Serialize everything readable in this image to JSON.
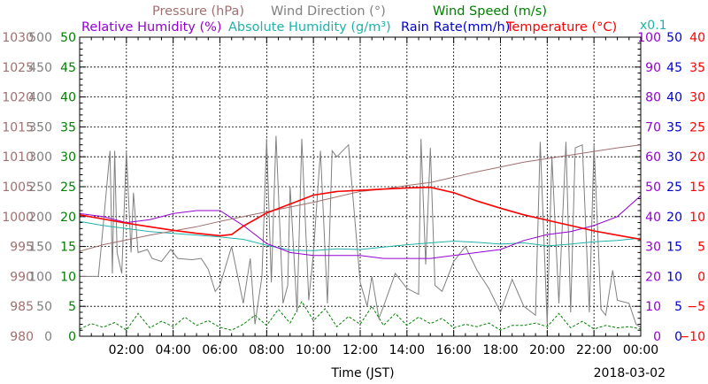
{
  "chart_data": {
    "type": "line",
    "x_axis": {
      "label": "Time (JST)",
      "range": [
        "00:00",
        "24:00"
      ],
      "ticks": [
        "02:00",
        "04:00",
        "06:00",
        "08:00",
        "10:00",
        "12:00",
        "14:00",
        "16:00",
        "18:00",
        "20:00",
        "22:00",
        "00:00"
      ],
      "date": "2018-03-02"
    },
    "left_axes": [
      {
        "name": "Pressure (hPa)",
        "color": "#a07070",
        "range": [
          980,
          1030
        ],
        "ticks": [
          "980",
          "985",
          "990",
          "995",
          "1000",
          "1005",
          "1010",
          "1015",
          "1020",
          "1025",
          "1030"
        ]
      },
      {
        "name": "Wind Direction (°)",
        "color": "#808080",
        "range": [
          0,
          360
        ],
        "ticks": [
          "0",
          "50",
          "100",
          "150",
          "200",
          "250",
          "300",
          "350",
          "400",
          "450",
          "500"
        ]
      },
      {
        "name": "Wind Speed (m/s)",
        "color": "#008000",
        "range": [
          0,
          50
        ],
        "ticks": [
          "0",
          "5",
          "10",
          "15",
          "20",
          "25",
          "30",
          "35",
          "40",
          "45",
          "50"
        ]
      }
    ],
    "right_axes": [
      {
        "name": "Relative Humidity (%)",
        "color": "#9400d3",
        "range": [
          0,
          100
        ],
        "ticks": [
          "0",
          "10",
          "20",
          "30",
          "40",
          "50",
          "60",
          "70",
          "80",
          "90",
          "100"
        ]
      },
      {
        "name": "Rain Rate(mm/h)",
        "color": "#0000cd",
        "range": [
          0,
          50
        ],
        "ticks": [
          "0",
          "5",
          "10",
          "15",
          "20",
          "25",
          "30",
          "35",
          "40",
          "45",
          "50"
        ]
      },
      {
        "name": "Temperature (°C)",
        "color": "#ff0000",
        "range": [
          -10,
          40
        ],
        "ticks": [
          "−10",
          "−5",
          "0",
          "5",
          "10",
          "15",
          "20",
          "25",
          "30",
          "35",
          "40"
        ]
      }
    ],
    "absolute_humidity_axis": {
      "name": "Absolute Humidity (g/m³)",
      "multiplier": "x0.1",
      "color": "#20b2aa"
    },
    "legend": {
      "row1": [
        "Pressure (hPa)",
        "Wind Direction (°)",
        "Wind Speed (m/s)"
      ],
      "row2": [
        "Relative Humidity (%)",
        "Absolute Humidity (g/m³)",
        "Rain Rate(mm/h)",
        "Temperature (°C)"
      ]
    },
    "series": [
      {
        "name": "Pressure (hPa)",
        "color": "#a07070",
        "unit_axis": "Pressure (hPa)",
        "x": [
          0,
          1,
          2,
          3,
          4,
          5,
          6,
          7,
          8,
          9,
          10,
          11,
          12,
          13,
          14,
          15,
          16,
          17,
          18,
          19,
          20,
          21,
          22,
          23,
          24
        ],
        "y": [
          994.2,
          995.3,
          996.1,
          996.9,
          997.6,
          998.3,
          999.2,
          1000.0,
          1000.8,
          1001.6,
          1002.4,
          1003.3,
          1004.2,
          1004.6,
          1005.2,
          1005.7,
          1006.6,
          1007.5,
          1008.3,
          1009.1,
          1009.7,
          1010.3,
          1010.9,
          1011.5,
          1012.0
        ]
      },
      {
        "name": "Temperature (°C)",
        "color": "#ff0000",
        "unit_axis": "Temperature (°C)",
        "x": [
          0,
          1,
          2,
          3,
          4,
          5,
          6,
          6.5,
          7,
          8,
          9,
          10,
          11,
          12,
          13,
          14,
          15,
          16,
          17,
          18,
          19,
          20,
          21,
          22,
          23,
          24
        ],
        "y": [
          10.3,
          9.6,
          8.9,
          8.3,
          7.7,
          7.2,
          6.8,
          7.0,
          8.4,
          10.6,
          12.1,
          13.6,
          14.2,
          14.4,
          14.6,
          14.8,
          14.9,
          14.0,
          12.6,
          11.4,
          10.3,
          9.4,
          8.5,
          7.6,
          6.9,
          6.2
        ]
      },
      {
        "name": "Relative Humidity (%)",
        "color": "#9400d3",
        "unit_axis": "Relative Humidity (%)",
        "x": [
          0,
          1,
          2,
          3,
          4,
          5,
          6,
          7,
          8,
          9,
          10,
          11,
          12,
          13,
          14,
          15,
          16,
          17,
          18,
          19,
          20,
          21,
          22,
          23,
          24
        ],
        "y": [
          41,
          40,
          38,
          39,
          41,
          42,
          42,
          37,
          31,
          28,
          27,
          27,
          27,
          26,
          26,
          26,
          27,
          28,
          29,
          32,
          34,
          35,
          37,
          40,
          47
        ]
      },
      {
        "name": "Absolute Humidity (g/m³)",
        "color": "#20b2aa",
        "unit_axis": "Rain Rate(mm/h)",
        "x": [
          0,
          1,
          2,
          3,
          4,
          5,
          6,
          7,
          8,
          9,
          10,
          11,
          12,
          13,
          14,
          15,
          16,
          17,
          18,
          19,
          20,
          21,
          22,
          23,
          24
        ],
        "y": [
          19.2,
          18.5,
          18.0,
          17.5,
          17.2,
          16.9,
          16.6,
          16.2,
          15.2,
          14.4,
          14.3,
          14.6,
          14.5,
          14.9,
          15.3,
          15.6,
          15.9,
          15.7,
          15.4,
          15.6,
          15.1,
          15.4,
          15.8,
          16.0,
          16.4
        ]
      },
      {
        "name": "Wind Direction (°)",
        "color": "#808080",
        "unit_axis": "Wind Direction (°)",
        "x": [
          0.0,
          0.8,
          0.9,
          1.3,
          1.4,
          1.5,
          1.6,
          1.8,
          2.0,
          2.2,
          2.3,
          2.5,
          2.9,
          3.1,
          3.5,
          3.9,
          4.2,
          4.8,
          5.2,
          5.5,
          5.8,
          6.0,
          6.5,
          7.0,
          7.3,
          7.5,
          7.8,
          8.0,
          8.2,
          8.4,
          8.7,
          8.9,
          9.0,
          9.3,
          9.5,
          9.8,
          10.0,
          10.3,
          10.6,
          10.8,
          11.0,
          11.5,
          12.0,
          12.3,
          12.5,
          12.8,
          13.0,
          13.5,
          14.0,
          14.5,
          14.6,
          14.8,
          15.0,
          15.2,
          15.5,
          16.0,
          16.5,
          17.0,
          17.5,
          18.0,
          18.5,
          19.0,
          19.5,
          19.7,
          20.0,
          20.2,
          20.5,
          20.8,
          21.0,
          21.2,
          21.5,
          21.8,
          22.0,
          22.3,
          22.5,
          22.8,
          23.0,
          23.5,
          23.8,
          24.0
        ],
        "y": [
          100,
          100,
          140,
          310,
          105,
          310,
          140,
          105,
          310,
          140,
          240,
          140,
          145,
          130,
          125,
          145,
          130,
          128,
          130,
          112,
          75,
          85,
          150,
          55,
          130,
          20,
          100,
          330,
          90,
          335,
          55,
          85,
          250,
          40,
          330,
          60,
          140,
          310,
          55,
          310,
          300,
          320,
          90,
          50,
          100,
          30,
          50,
          105,
          80,
          70,
          330,
          120,
          315,
          85,
          75,
          125,
          150,
          110,
          80,
          40,
          95,
          50,
          35,
          325,
          20,
          300,
          55,
          325,
          40,
          315,
          320,
          40,
          320,
          45,
          35,
          110,
          60,
          55,
          20,
          15
        ]
      },
      {
        "name": "Wind Speed (m/s)",
        "color": "#008000",
        "unit_axis": "Wind Speed (m/s)",
        "x": [
          0,
          0.5,
          1,
          1.5,
          2,
          2.5,
          3,
          3.5,
          4,
          4.5,
          5,
          5.5,
          6,
          6.5,
          7,
          7.5,
          8,
          8.5,
          9,
          9.5,
          10,
          10.5,
          11,
          11.5,
          12,
          12.5,
          13,
          13.5,
          14,
          14.5,
          15,
          15.5,
          16,
          16.5,
          17,
          17.5,
          18,
          18.5,
          19,
          19.5,
          20,
          20.5,
          21,
          21.5,
          22,
          22.5,
          23,
          23.5,
          24
        ],
        "y": [
          1.2,
          2.1,
          1.5,
          2.3,
          1.0,
          3.8,
          1.4,
          2.5,
          1.6,
          3.2,
          1.8,
          2.6,
          1.5,
          1.0,
          2.0,
          3.5,
          1.8,
          4.5,
          2.2,
          5.8,
          2.6,
          4.6,
          1.6,
          3.3,
          2.0,
          5.0,
          1.8,
          3.8,
          1.8,
          3.2,
          2.1,
          3.0,
          1.4,
          2.0,
          1.6,
          2.2,
          1.0,
          1.8,
          1.8,
          2.2,
          1.6,
          3.8,
          1.4,
          2.5,
          1.2,
          1.8,
          1.4,
          1.6,
          1.2
        ]
      },
      {
        "name": "Rain Rate(mm/h)",
        "color": "#0000cd",
        "unit_axis": "Rain Rate(mm/h)",
        "x": [
          0,
          24
        ],
        "y": [
          0,
          0
        ]
      }
    ]
  }
}
